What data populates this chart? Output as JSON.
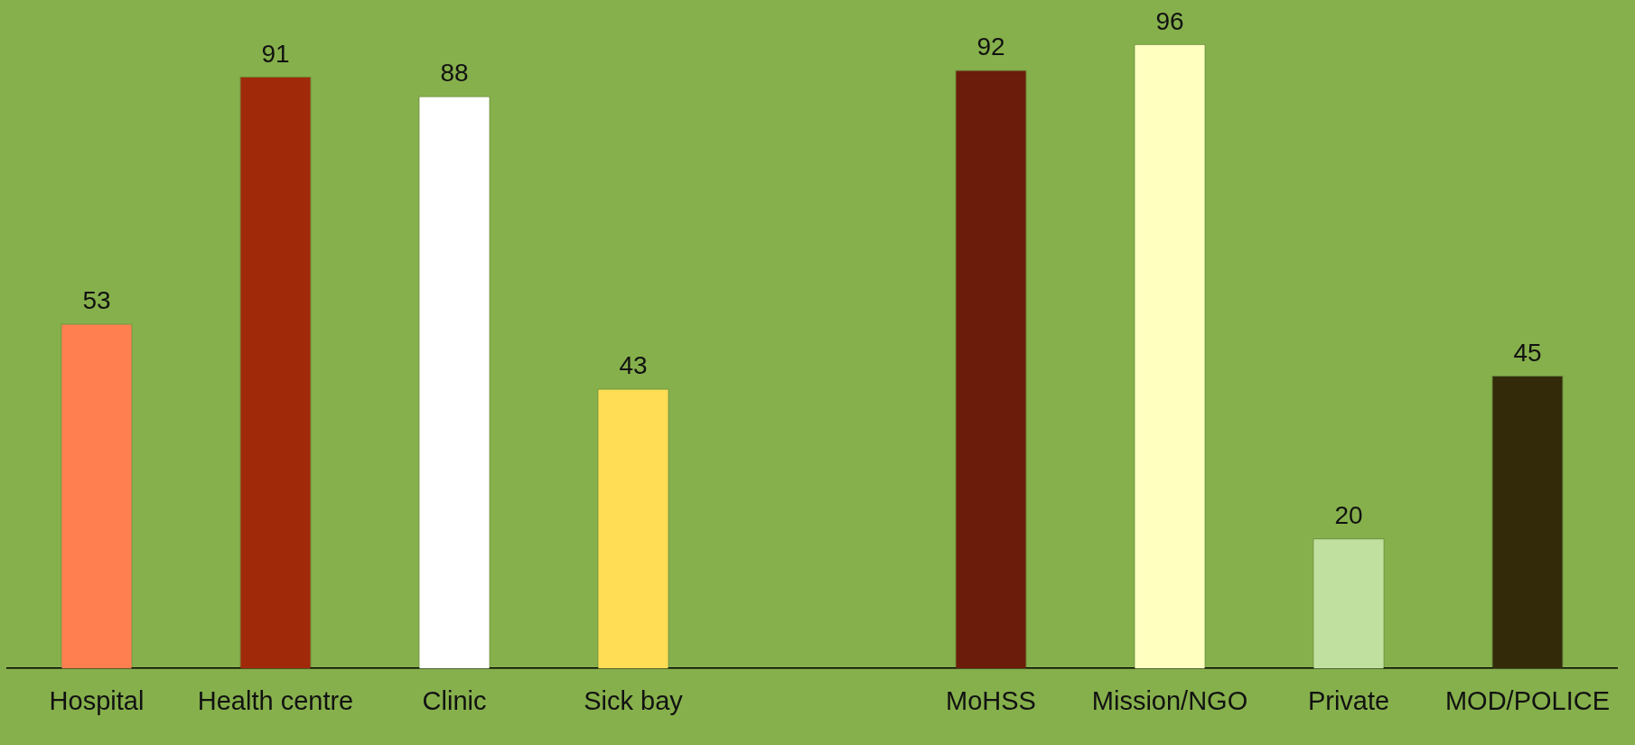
{
  "chart_data": {
    "type": "bar",
    "categories": [
      "Hospital",
      "Health centre",
      "Clinic",
      "Sick bay",
      null,
      "MoHSS",
      "Mission/NGO",
      "Private",
      "MOD/POLICE"
    ],
    "values": [
      53,
      91,
      88,
      43,
      null,
      92,
      96,
      20,
      45
    ],
    "colors": [
      "#ff7f50",
      "#a0290a",
      "#ffffff",
      "#ffdd55",
      "#000000",
      "#6b1c0a",
      "#ffffc0",
      "#c0e0a0",
      "#332a0a"
    ],
    "data_labels": true,
    "grid": false,
    "legend": false
  }
}
